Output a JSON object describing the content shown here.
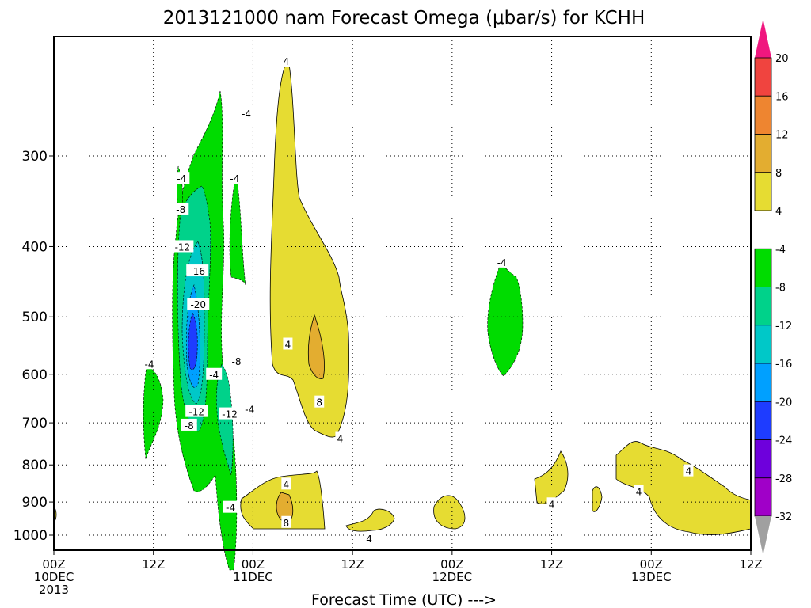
{
  "chart_data": {
    "type": "heatmap",
    "title": "2013121000 nam Forecast Omega (μbar/s) for KCHH",
    "xlabel": "Forecast Time (UTC) --->",
    "ylabel": "",
    "x_range_hours": [
      0,
      84
    ],
    "x_ticks": [
      {
        "h": 0,
        "l1": "00Z",
        "l2": "10DEC",
        "l3": "2013"
      },
      {
        "h": 12,
        "l1": "12Z",
        "l2": "",
        "l3": ""
      },
      {
        "h": 24,
        "l1": "00Z",
        "l2": "11DEC",
        "l3": ""
      },
      {
        "h": 36,
        "l1": "12Z",
        "l2": "",
        "l3": ""
      },
      {
        "h": 48,
        "l1": "00Z",
        "l2": "12DEC",
        "l3": ""
      },
      {
        "h": 60,
        "l1": "12Z",
        "l2": "",
        "l3": ""
      },
      {
        "h": 72,
        "l1": "00Z",
        "l2": "13DEC",
        "l3": ""
      },
      {
        "h": 84,
        "l1": "12Z",
        "l2": "",
        "l3": ""
      }
    ],
    "y_ticks": [
      "300",
      "400",
      "500",
      "600",
      "700",
      "800",
      "900",
      "1000"
    ],
    "y_range_hpa": [
      200,
      1050
    ],
    "grid": true,
    "colorbar": {
      "levels": [
        "20",
        "16",
        "12",
        "8",
        "4",
        "-4",
        "-8",
        "-12",
        "-16",
        "-20",
        "-24",
        "-28",
        "-32"
      ],
      "colors": [
        "#f0177f",
        "#f0443f",
        "#ee8530",
        "#e3ad30",
        "#e6dc32",
        "#ffffff",
        "#00dc00",
        "#00d28a",
        "#00c8c8",
        "#00a0ff",
        "#1e3cff",
        "#6e00dc",
        "#a000c8",
        "#a0a0a0"
      ]
    },
    "contour_labels": [
      {
        "h": 23.2,
        "p": 262,
        "v": "-4"
      },
      {
        "h": 15.4,
        "p": 322,
        "v": "-4"
      },
      {
        "h": 21.8,
        "p": 322,
        "v": "-4"
      },
      {
        "h": 15.3,
        "p": 355,
        "v": "-8"
      },
      {
        "h": 15.5,
        "p": 400,
        "v": "-12"
      },
      {
        "h": 17.3,
        "p": 432,
        "v": "-16"
      },
      {
        "h": 17.4,
        "p": 480,
        "v": "-20"
      },
      {
        "h": 22,
        "p": 575,
        "v": "-8"
      },
      {
        "h": 19.3,
        "p": 600,
        "v": "-4"
      },
      {
        "h": 11.5,
        "p": 580,
        "v": "-4"
      },
      {
        "h": 17.2,
        "p": 675,
        "v": "-12"
      },
      {
        "h": 21.2,
        "p": 680,
        "v": "-12"
      },
      {
        "h": 16.3,
        "p": 705,
        "v": "-8"
      },
      {
        "h": 23.6,
        "p": 670,
        "v": "-4"
      },
      {
        "h": 21.3,
        "p": 915,
        "v": "-4"
      },
      {
        "h": 28,
        "p": 222,
        "v": "4"
      },
      {
        "h": 28.2,
        "p": 545,
        "v": "4"
      },
      {
        "h": 32,
        "p": 655,
        "v": "8"
      },
      {
        "h": 34.5,
        "p": 735,
        "v": "4"
      },
      {
        "h": 28,
        "p": 850,
        "v": "4"
      },
      {
        "h": 28,
        "p": 960,
        "v": "8"
      },
      {
        "h": 38,
        "p": 1010,
        "v": "4"
      },
      {
        "h": 54,
        "p": 420,
        "v": "-4"
      },
      {
        "h": 60,
        "p": 905,
        "v": "4"
      },
      {
        "h": 76.5,
        "p": 815,
        "v": "4"
      },
      {
        "h": 70.5,
        "p": 870,
        "v": "4"
      }
    ]
  }
}
